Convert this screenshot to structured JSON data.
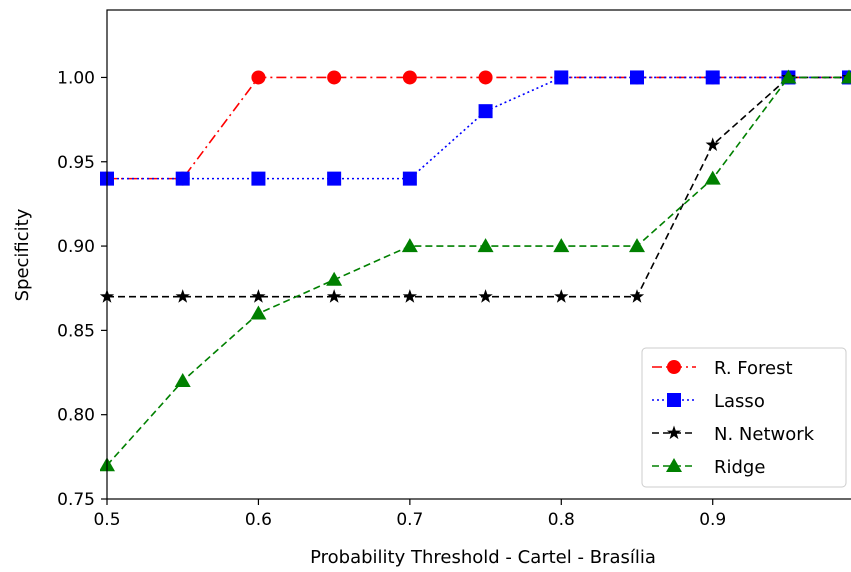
{
  "chart_data": {
    "type": "line",
    "xlabel": "Probability Threshold - Cartel - Brasília",
    "ylabel": "Specificity",
    "xlim": [
      0.5,
      0.99
    ],
    "ylim": [
      0.75,
      1.04
    ],
    "xticks": [
      "0.5",
      "0.6",
      "0.7",
      "0.8",
      "0.9"
    ],
    "yticks": [
      "0.75",
      "0.80",
      "0.85",
      "0.90",
      "0.95",
      "1.00"
    ],
    "x": [
      0.5,
      0.55,
      0.6,
      0.65,
      0.7,
      0.75,
      0.8,
      0.85,
      0.9,
      0.95,
      0.99
    ],
    "grid": false,
    "legend_position": "lower-right",
    "series": [
      {
        "name": "R. Forest",
        "color": "#ff0000",
        "marker": "circle",
        "line": "dash-dot",
        "values": [
          0.94,
          0.94,
          1.0,
          1.0,
          1.0,
          1.0,
          1.0,
          1.0,
          1.0,
          1.0,
          1.0
        ]
      },
      {
        "name": "Lasso",
        "color": "#0000ff",
        "marker": "square",
        "line": "dotted",
        "values": [
          0.94,
          0.94,
          0.94,
          0.94,
          0.94,
          0.98,
          1.0,
          1.0,
          1.0,
          1.0,
          1.0
        ]
      },
      {
        "name": "N. Network",
        "color": "#000000",
        "marker": "star",
        "line": "dashed",
        "values": [
          0.87,
          0.87,
          0.87,
          0.87,
          0.87,
          0.87,
          0.87,
          0.87,
          0.96,
          1.0,
          1.0
        ]
      },
      {
        "name": "Ridge",
        "color": "#008000",
        "marker": "triangle",
        "line": "dashed",
        "values": [
          0.77,
          0.82,
          0.86,
          0.88,
          0.9,
          0.9,
          0.9,
          0.9,
          0.94,
          1.0,
          1.0
        ]
      }
    ]
  }
}
